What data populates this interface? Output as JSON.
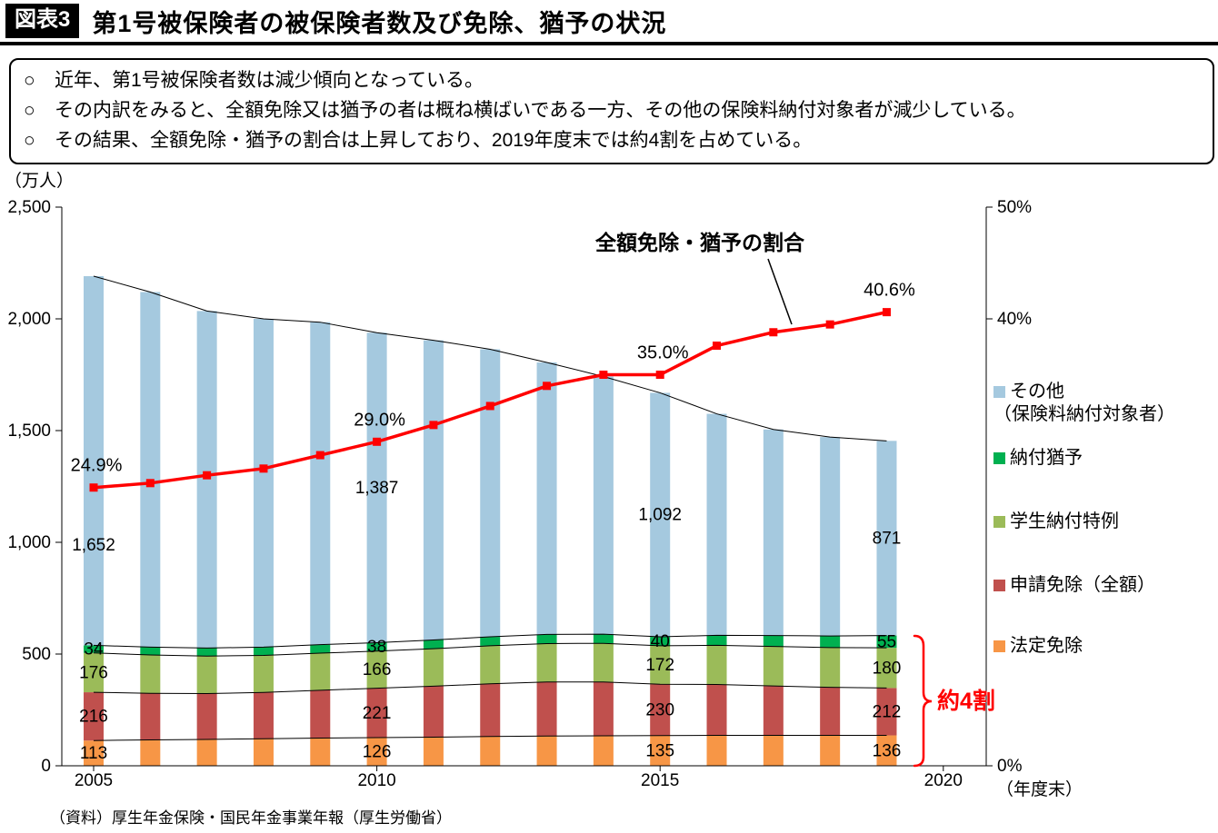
{
  "header": {
    "tag": "図表3",
    "title": "第1号被保険者の被保険者数及び免除、猶予の状況"
  },
  "notes": {
    "bullet": "○",
    "items": [
      "近年、第1号被保険者数は減少傾向となっている。",
      "その内訳をみると、全額免除又は猶予の者は概ね横ばいである一方、その他の保険料納付対象者が減少している。",
      "その結果、全額免除・猶予の割合は上昇しており、2019年度末では約4割を占めている。"
    ]
  },
  "chart_data": {
    "type": "bar",
    "stacked": true,
    "x": [
      2005,
      2006,
      2007,
      2008,
      2009,
      2010,
      2011,
      2012,
      2013,
      2014,
      2015,
      2016,
      2017,
      2018,
      2019
    ],
    "series": [
      {
        "name": "法定免除",
        "color": "#f79646",
        "values": [
          113,
          116,
          118,
          121,
          124,
          126,
          128,
          131,
          133,
          134,
          135,
          136,
          136,
          136,
          136
        ]
      },
      {
        "name": "申請免除（全額）",
        "color": "#c0504d",
        "values": [
          216,
          208,
          205,
          207,
          214,
          221,
          228,
          236,
          242,
          241,
          230,
          228,
          221,
          215,
          212
        ]
      },
      {
        "name": "学生納付特例",
        "color": "#9bbb59",
        "values": [
          176,
          172,
          168,
          166,
          166,
          166,
          168,
          170,
          172,
          173,
          172,
          175,
          177,
          178,
          180
        ]
      },
      {
        "name": "納付猶予",
        "color": "#00b050",
        "values": [
          34,
          35,
          36,
          37,
          38,
          38,
          39,
          40,
          41,
          41,
          40,
          45,
          49,
          52,
          55
        ]
      },
      {
        "name": "その他（保険料納付対象者）",
        "color": "#a5c9df",
        "values": [
          1652,
          1589,
          1508,
          1469,
          1443,
          1387,
          1341,
          1287,
          1217,
          1153,
          1092,
          991,
          922,
          890,
          871
        ]
      }
    ],
    "line_series": {
      "name": "全額免除・猶予の割合",
      "color": "#ff0000",
      "values": [
        24.9,
        25.3,
        26.0,
        26.6,
        27.8,
        29.0,
        30.5,
        32.2,
        34.0,
        35.0,
        35.0,
        37.6,
        38.8,
        39.5,
        40.6
      ]
    },
    "left_axis": {
      "unit": "（万人）",
      "min": 0,
      "max": 2500,
      "ticks": [
        "2,500",
        "2,000",
        "1,500",
        "1,000",
        "500",
        "0"
      ]
    },
    "right_axis": {
      "min": 0,
      "max": 50,
      "labels": [
        {
          "pct": 50,
          "text": "50%"
        },
        {
          "pct": 40,
          "text": "40%"
        },
        {
          "pct": 0,
          "text": "0%"
        }
      ]
    },
    "x_axis": {
      "labels": [
        {
          "index": 0,
          "text": "2005"
        },
        {
          "index": 5,
          "text": "2010"
        },
        {
          "index": 10,
          "text": "2015"
        },
        {
          "index": 15,
          "text": "2020"
        }
      ],
      "unit": "（年度末）"
    },
    "legend": [
      {
        "lines": [
          "その他",
          "（保険料納付対象者）"
        ],
        "color": "#a5c9df"
      },
      {
        "lines": [
          "納付猶予"
        ],
        "color": "#00b050"
      },
      {
        "lines": [
          "学生納付特例"
        ],
        "color": "#9bbb59"
      },
      {
        "lines": [
          "申請免除（全額）"
        ],
        "color": "#c0504d"
      },
      {
        "lines": [
          "法定免除"
        ],
        "color": "#f79646"
      }
    ],
    "bar_labels": [
      {
        "index": 0,
        "values": [
          "113",
          "216",
          "176",
          "34",
          "1,652"
        ]
      },
      {
        "index": 5,
        "values": [
          "126",
          "221",
          "166",
          "38",
          "1,387"
        ]
      },
      {
        "index": 10,
        "values": [
          "135",
          "230",
          "172",
          "40",
          "1,092"
        ]
      },
      {
        "index": 14,
        "values": [
          "136",
          "212",
          "180",
          "55",
          "871"
        ]
      }
    ],
    "pct_labels": [
      {
        "index": 0,
        "text": "24.9%"
      },
      {
        "index": 5,
        "text": "29.0%"
      },
      {
        "index": 10,
        "text": "35.0%"
      },
      {
        "index": 14,
        "text": "40.6%"
      }
    ],
    "annotations": {
      "line_label": "全額免除・猶予の割合",
      "bracket_label": "約4割"
    }
  },
  "source": "（資料）厚生年金保険・国民年金事業年報（厚生労働省）"
}
